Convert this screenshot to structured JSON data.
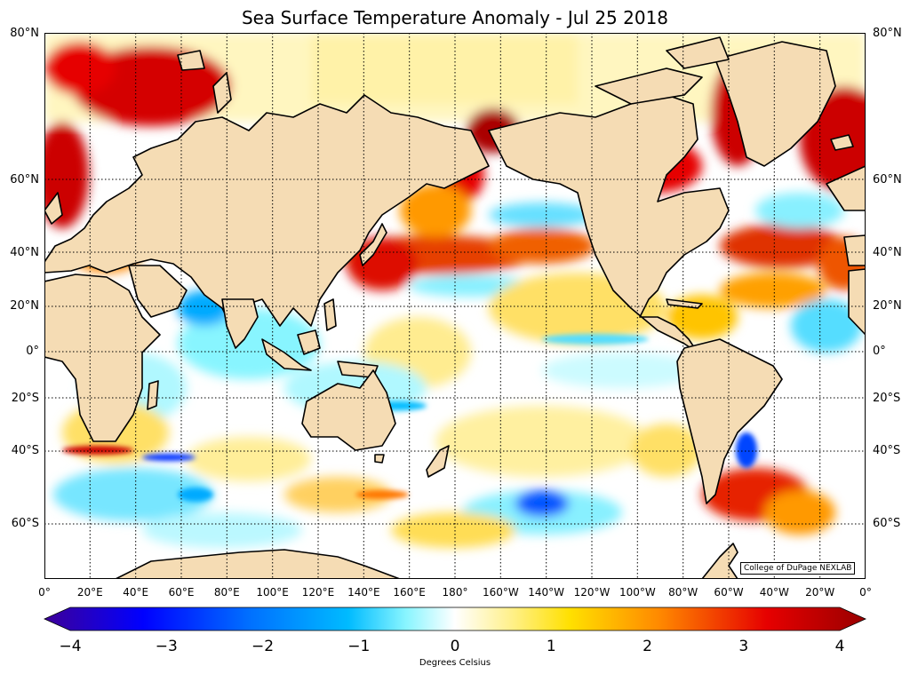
{
  "title": "Sea Surface Temperature Anomaly - Jul 25 2018",
  "credit": "College of DuPage NEXLAB",
  "lat_labels": [
    "80°N",
    "60°N",
    "40°N",
    "20°N",
    "0°",
    "20°S",
    "40°S",
    "60°S"
  ],
  "lon_labels": [
    "0°",
    "20°E",
    "40°E",
    "60°E",
    "80°E",
    "100°E",
    "120°E",
    "140°E",
    "160°E",
    "180°",
    "160°W",
    "140°W",
    "120°W",
    "100°W",
    "80°W",
    "60°W",
    "40°W",
    "20°W",
    "0°"
  ],
  "colorbar": {
    "label": "Degrees Celsius",
    "min": -4,
    "max": 4,
    "ticks": [
      "−4",
      "−3",
      "−2",
      "−1",
      "0",
      "1",
      "2",
      "3",
      "4"
    ],
    "colors": [
      "#3d0099",
      "#0000ff",
      "#0066ff",
      "#00bbff",
      "#88f5ff",
      "#ffffff",
      "#fff088",
      "#ffd500",
      "#ff8000",
      "#e60000",
      "#990000"
    ]
  },
  "colors": {
    "land": "#f5dcb4",
    "coast": "#000000",
    "ocean_neutral": "#ffffff",
    "warm": "#e60000",
    "cool": "#00bbff"
  }
}
